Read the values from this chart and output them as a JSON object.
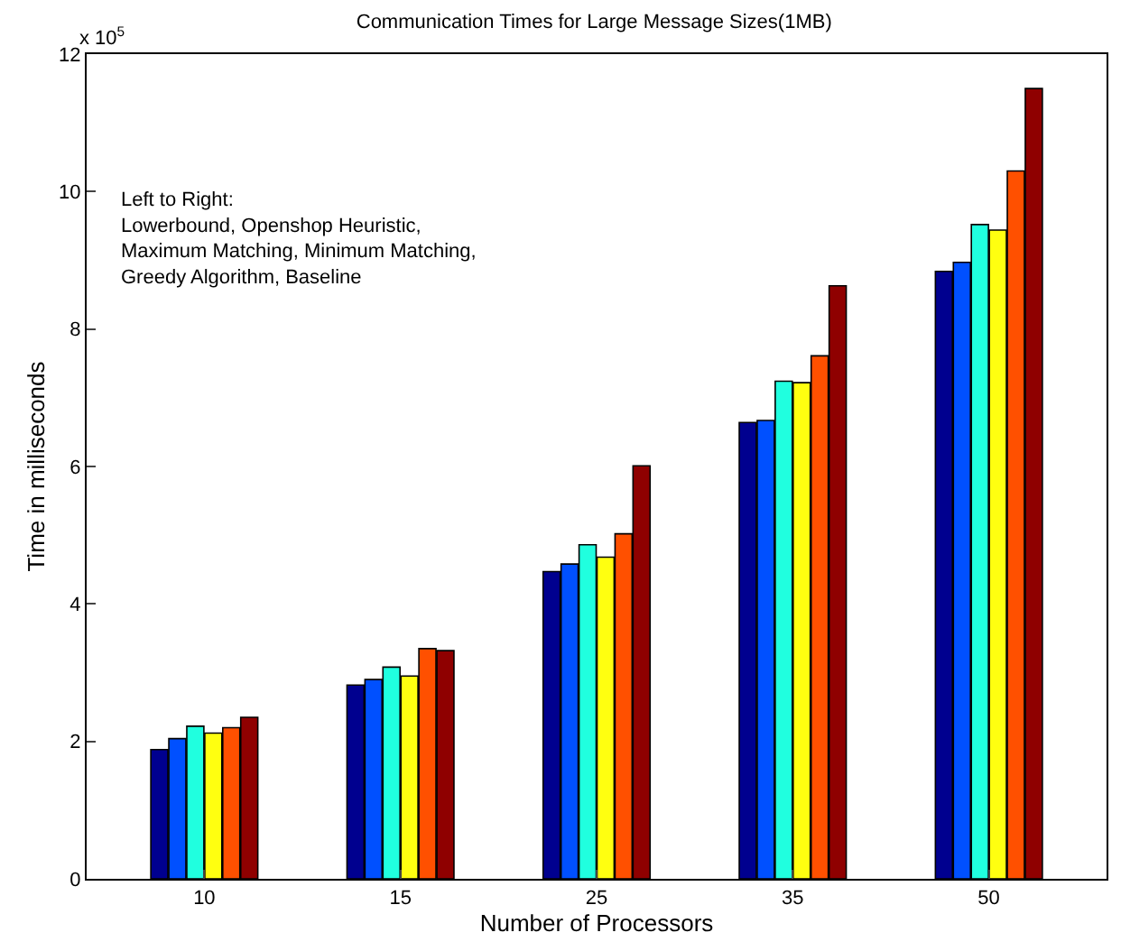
{
  "chart_data": {
    "type": "bar",
    "title": "Communication Times for Large Message Sizes(1MB)",
    "xlabel": "Number of Processors",
    "ylabel": "Time in milliseconds",
    "categories": [
      "10",
      "15",
      "25",
      "35",
      "50"
    ],
    "series": [
      {
        "color": "#00008f",
        "values": [
          1.88,
          2.82,
          4.47,
          6.64,
          8.84
        ]
      },
      {
        "color": "#0050ff",
        "values": [
          2.04,
          2.9,
          4.58,
          6.67,
          8.97
        ]
      },
      {
        "color": "#20ffdf",
        "values": [
          2.22,
          3.08,
          4.86,
          7.24,
          9.52
        ]
      },
      {
        "color": "#ffff10",
        "values": [
          2.12,
          2.95,
          4.68,
          7.22,
          9.44
        ]
      },
      {
        "color": "#ff5000",
        "values": [
          2.2,
          3.35,
          5.02,
          7.61,
          10.3
        ]
      },
      {
        "color": "#8f0000",
        "values": [
          2.35,
          3.32,
          6.01,
          8.63,
          11.5
        ]
      }
    ],
    "ylim": [
      0,
      12
    ],
    "yticks": [
      0,
      2,
      4,
      6,
      8,
      10,
      12
    ],
    "grid": false,
    "annotations": [
      "x 10$^{5}$",
      "Left to Right:\nLowerbound, Openshop Heuristic,\nMaximum Matching, Minimum Matching,\nGreedy Algorithm, Baseline"
    ]
  }
}
